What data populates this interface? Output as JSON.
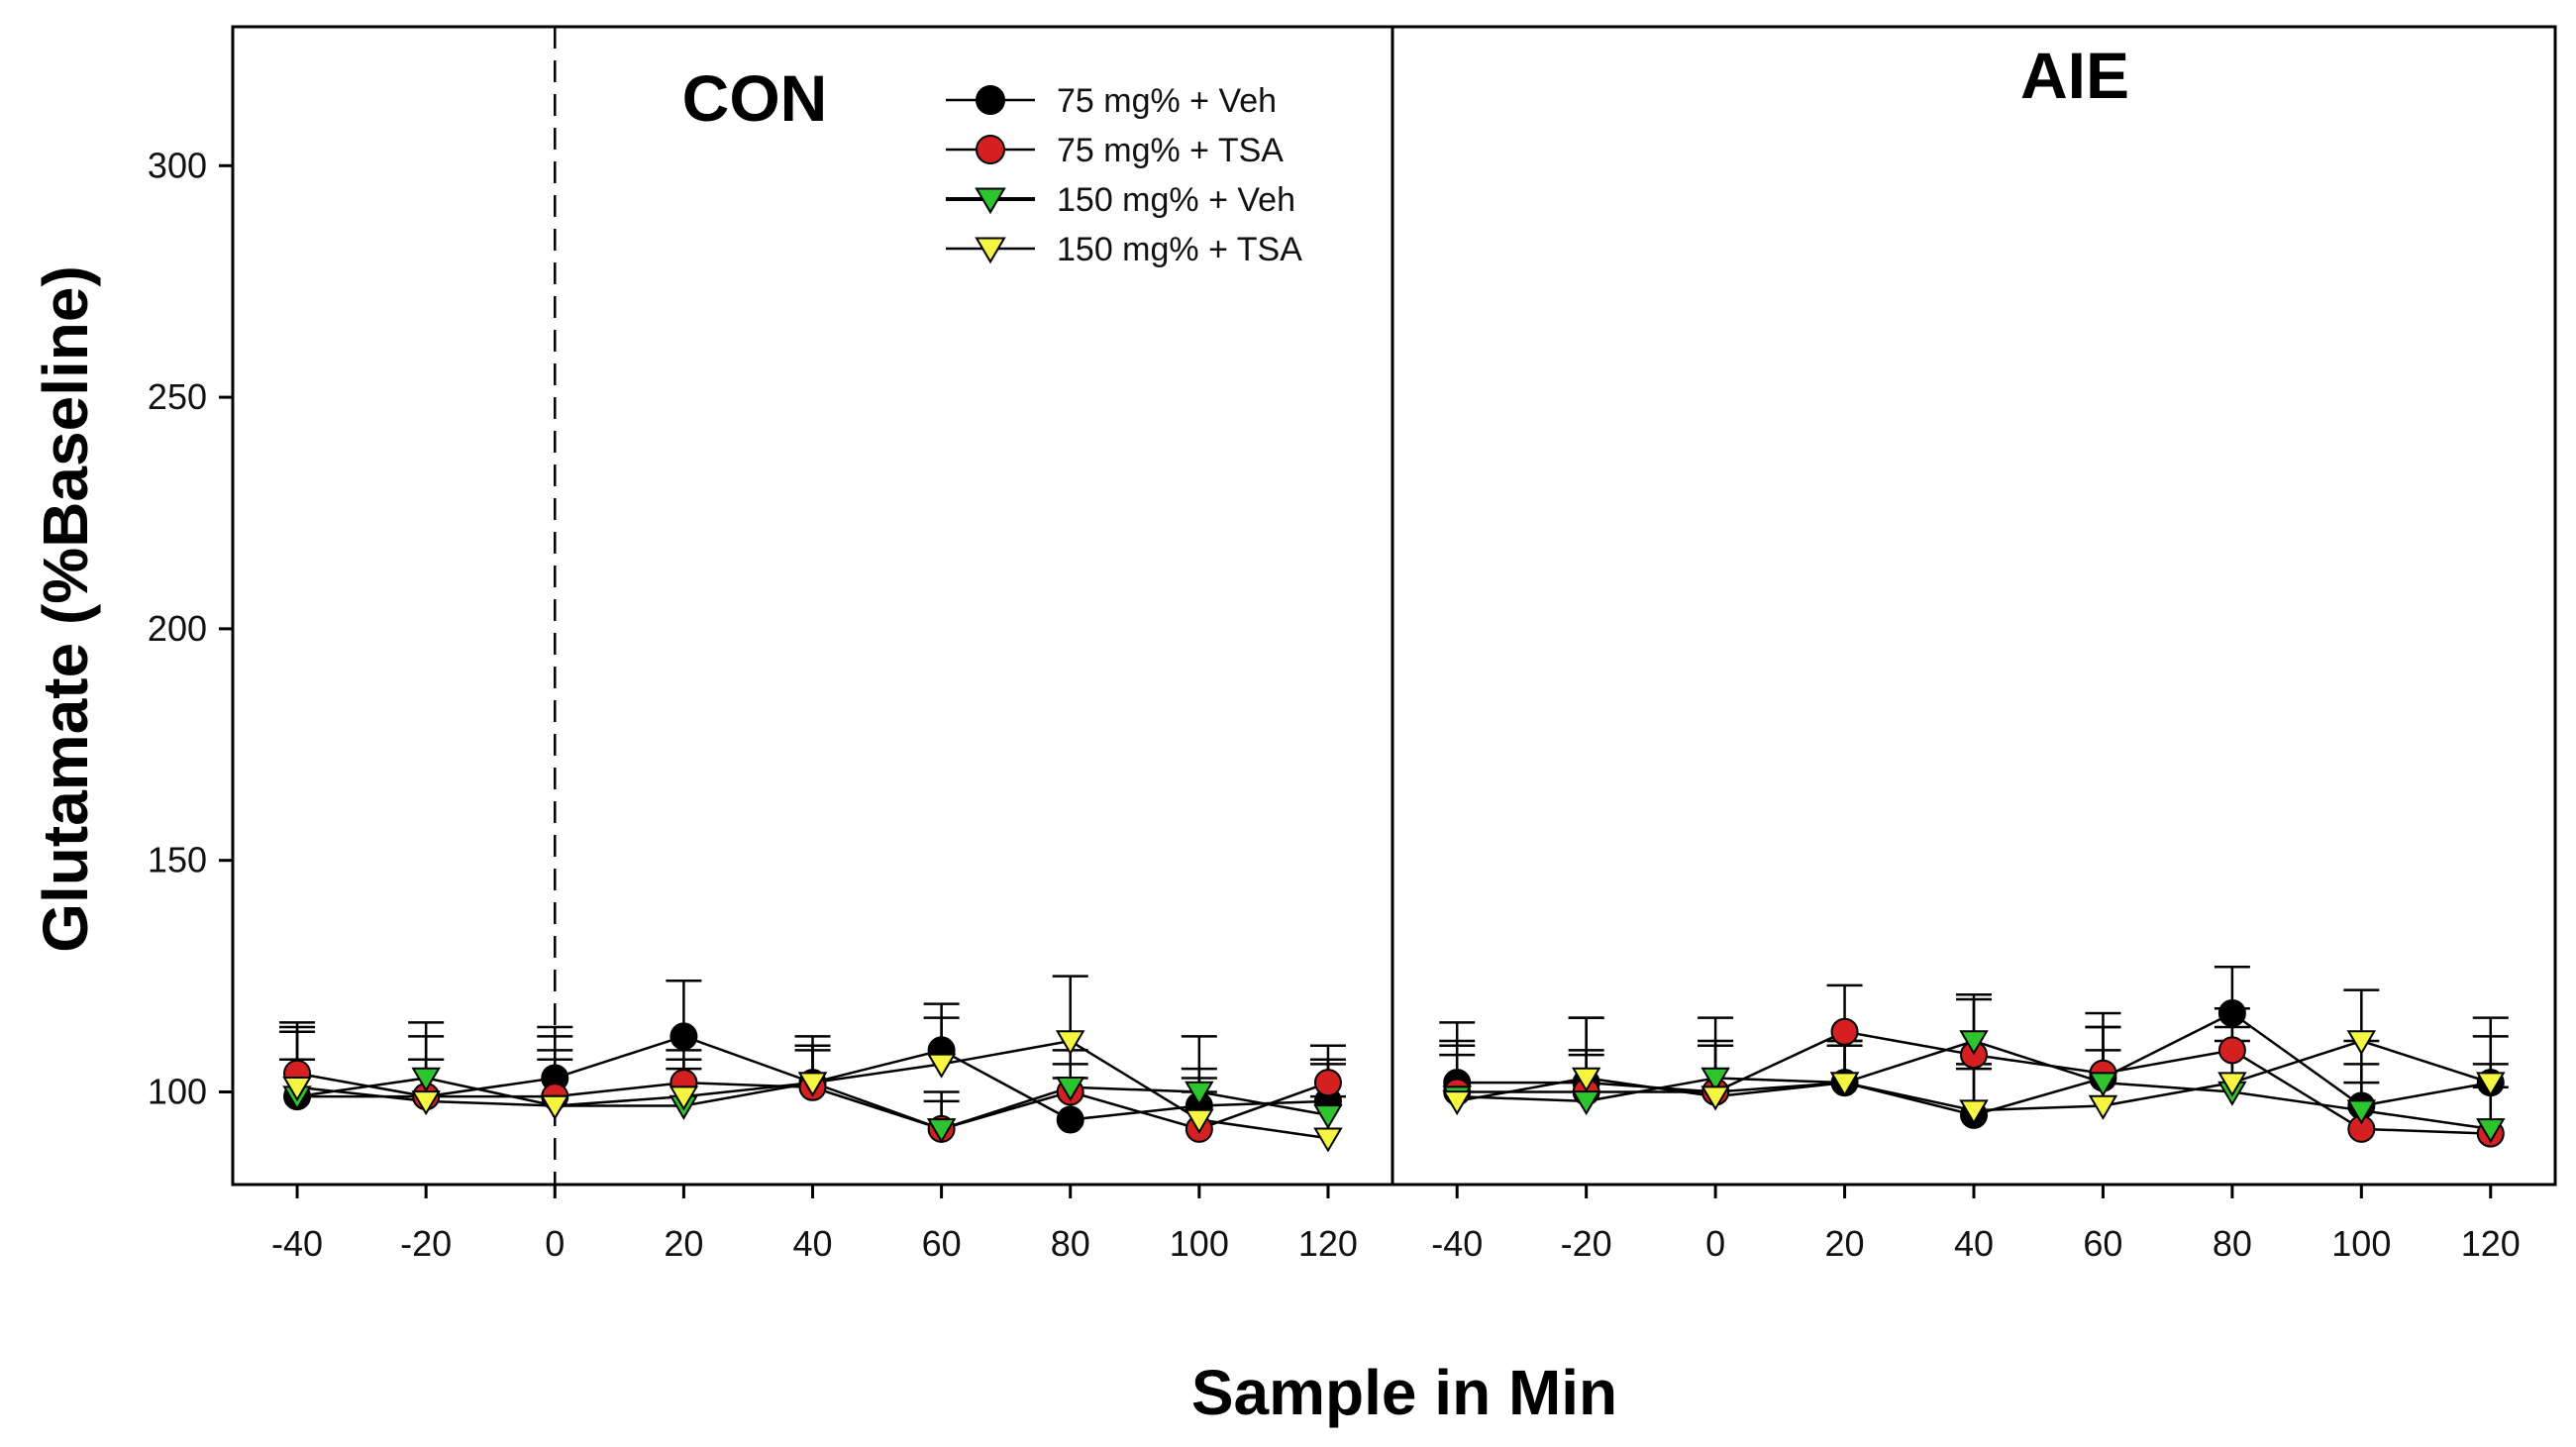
{
  "chart_data": {
    "type": "line",
    "ylabel": "Glutamate (%Baseline)",
    "xlabel": "Sample in Min",
    "x": [
      -40,
      -20,
      0,
      20,
      40,
      60,
      80,
      100,
      120
    ],
    "x_tick_labels": [
      "-40",
      "-20",
      "0",
      "20",
      "40",
      "60",
      "80",
      "100",
      "120"
    ],
    "y_ticks": [
      100,
      150,
      200,
      250,
      300
    ],
    "y_tick_labels": [
      "100",
      "150",
      "200",
      "250",
      "300"
    ],
    "ylim": [
      80,
      330
    ],
    "xlim": [
      -50,
      130
    ],
    "reference_line": {
      "x": 0,
      "panel": "CON",
      "style": "dashed"
    },
    "colors": {
      "s75veh": "#000000",
      "s75tsa": "#d42020",
      "s150veh": "#2ec42e",
      "s150tsa": "#f5f542"
    },
    "series_meta": [
      {
        "key": "s75veh",
        "name": "75 mg% + Veh",
        "marker": "circle",
        "color": "#000000"
      },
      {
        "key": "s75tsa",
        "name": "75 mg% + TSA",
        "marker": "circle",
        "color": "#d42020"
      },
      {
        "key": "s150veh",
        "name": "150 mg% + Veh",
        "marker": "triangle-down",
        "color": "#2ec42e"
      },
      {
        "key": "s150tsa",
        "name": "150 mg% + TSA",
        "marker": "triangle-down",
        "color": "#f5f542"
      }
    ],
    "panels": [
      {
        "title": "CON",
        "series": [
          {
            "key": "s75veh",
            "values": [
              99,
              99,
              103,
              112,
              102,
              109,
              94,
              97,
              98
            ],
            "errors": [
              16,
              13,
              11,
              12,
              10,
              10,
              9,
              8,
              9
            ]
          },
          {
            "key": "s75tsa",
            "values": [
              104,
              99,
              99,
              102,
              101,
              92,
              100,
              92,
              102
            ],
            "errors": [
              10,
              8,
              8,
              7,
              8,
              6,
              6,
              8,
              8
            ]
          },
          {
            "key": "s150veh",
            "values": [
              99,
              103,
              97,
              97,
              102,
              92,
              101,
              100,
              95
            ],
            "errors": [
              8,
              12,
              15,
              8,
              8,
              8,
              8,
              12,
              11
            ]
          },
          {
            "key": "s150tsa",
            "values": [
              101,
              98,
              97,
              99,
              102,
              106,
              111,
              94,
              90
            ],
            "errors": [
              12,
              9,
              12,
              8,
              8,
              10,
              14,
              9,
              9
            ]
          }
        ]
      },
      {
        "title": "AIE",
        "series": [
          {
            "key": "s75veh",
            "values": [
              102,
              102,
              100,
              102,
              95,
              103,
              117,
              97,
              102
            ],
            "errors": [
              13,
              14,
              16,
              9,
              10,
              14,
              10,
              14,
              10
            ]
          },
          {
            "key": "s75tsa",
            "values": [
              100,
              100,
              100,
              113,
              108,
              104,
              109,
              92,
              91
            ],
            "errors": [
              10,
              9,
              10,
              10,
              12,
              10,
              9,
              10,
              10
            ]
          },
          {
            "key": "s150veh",
            "values": [
              99,
              98,
              103,
              102,
              111,
              102,
              100,
              96,
              92
            ],
            "errors": [
              12,
              10,
              8,
              8,
              10,
              12,
              11,
              10,
              14
            ]
          },
          {
            "key": "s150tsa",
            "values": [
              98,
              103,
              99,
              102,
              96,
              97,
              102,
              111,
              102
            ],
            "errors": [
              10,
              13,
              11,
              9,
              10,
              12,
              12,
              11,
              14
            ]
          }
        ]
      }
    ]
  }
}
